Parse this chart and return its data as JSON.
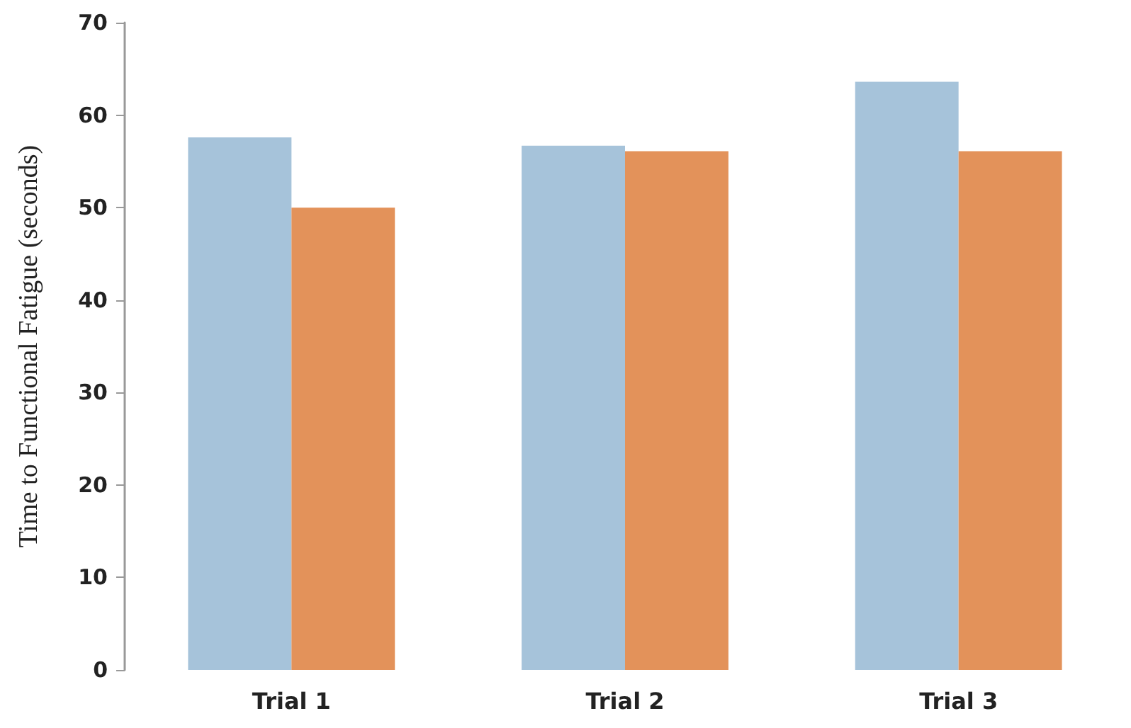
{
  "chart_data": {
    "type": "bar",
    "ylabel": "Time to Functional Fatigue (seconds)",
    "categories": [
      "Trial 1",
      "Trial 2",
      "Trial 3"
    ],
    "series": [
      {
        "color": "#a6c3da",
        "values": [
          57.6,
          56.7,
          63.6
        ]
      },
      {
        "color": "#e3925a",
        "values": [
          50,
          56.1,
          56.1
        ]
      }
    ],
    "ylim": [
      0,
      70
    ],
    "yticks": [
      0,
      10,
      20,
      30,
      40,
      50,
      60,
      70
    ],
    "grid": false
  }
}
